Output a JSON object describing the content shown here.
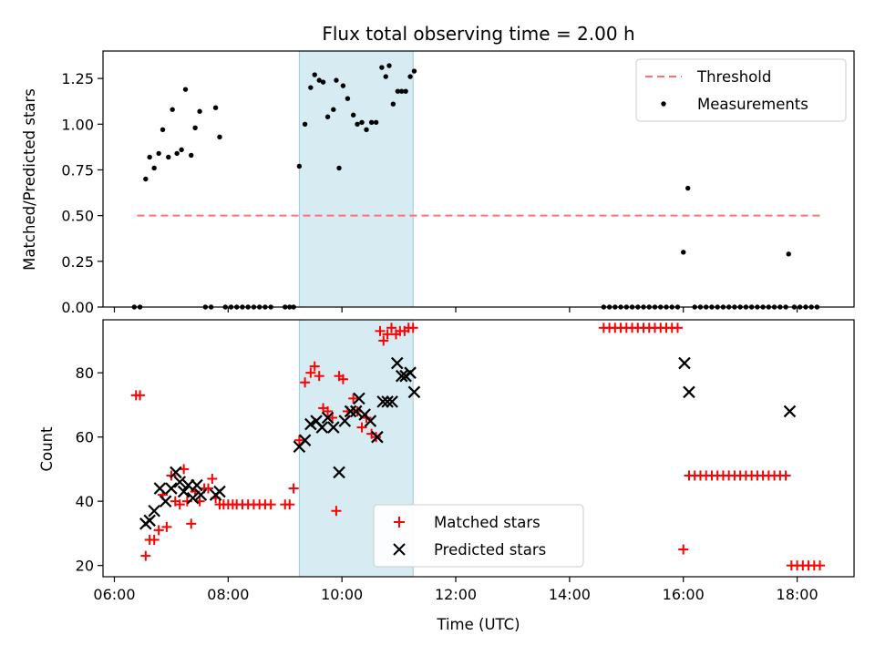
{
  "chart_data": [
    {
      "type": "scatter",
      "title": "Flux total observing time = 2.00 h",
      "xlabel": "",
      "ylabel": "Matched/Predicted stars",
      "xlim": [
        5.8,
        19.0
      ],
      "ylim": [
        0.0,
        1.4
      ],
      "yticks": [
        0.0,
        0.25,
        0.5,
        0.75,
        1.0,
        1.25
      ],
      "ytick_labels": [
        "0.00",
        "0.25",
        "0.50",
        "0.75",
        "1.00",
        "1.25"
      ],
      "highlight_span": [
        9.25,
        11.25
      ],
      "legend_position": "upper right",
      "grid": false,
      "series": [
        {
          "name": "Threshold",
          "type": "line",
          "style": "dashed",
          "color": "#ff7070",
          "x": [
            6.4,
            18.4
          ],
          "y": [
            0.5,
            0.5
          ]
        },
        {
          "name": "Measurements",
          "type": "scatter",
          "marker": "dot",
          "color": "#000000",
          "x": [
            6.35,
            6.45,
            6.55,
            6.62,
            6.7,
            6.78,
            6.85,
            6.95,
            7.02,
            7.1,
            7.18,
            7.25,
            7.35,
            7.42,
            7.5,
            7.6,
            7.7,
            7.78,
            7.85,
            7.95,
            8.05,
            8.15,
            8.25,
            8.35,
            8.45,
            8.55,
            8.65,
            8.75,
            9.0,
            9.08,
            9.15,
            9.25,
            9.35,
            9.45,
            9.52,
            9.6,
            9.67,
            9.75,
            9.85,
            9.9,
            9.95,
            10.02,
            10.1,
            10.2,
            10.27,
            10.35,
            10.43,
            10.52,
            10.6,
            10.7,
            10.77,
            10.83,
            10.9,
            10.98,
            11.05,
            11.12,
            11.2,
            11.27,
            14.6,
            14.7,
            14.8,
            14.9,
            15.0,
            15.1,
            15.2,
            15.3,
            15.4,
            15.5,
            15.6,
            15.7,
            15.8,
            15.9,
            16.0,
            16.08,
            16.2,
            16.3,
            16.4,
            16.5,
            16.6,
            16.7,
            16.8,
            16.9,
            17.0,
            17.1,
            17.2,
            17.3,
            17.4,
            17.5,
            17.6,
            17.7,
            17.8,
            17.85,
            17.95,
            18.05,
            18.15,
            18.25,
            18.35
          ],
          "y": [
            0.0,
            0.0,
            0.7,
            0.82,
            0.76,
            0.84,
            0.97,
            0.82,
            1.08,
            0.84,
            0.86,
            1.19,
            0.83,
            0.98,
            1.07,
            0.0,
            0.0,
            1.09,
            0.93,
            0.0,
            0.0,
            0.0,
            0.0,
            0.0,
            0.0,
            0.0,
            0.0,
            0.0,
            0.0,
            0.0,
            0.0,
            0.77,
            1.0,
            1.2,
            1.27,
            1.24,
            1.23,
            1.04,
            1.08,
            1.24,
            0.76,
            1.21,
            1.14,
            1.05,
            1.0,
            1.01,
            0.97,
            1.01,
            1.01,
            1.31,
            1.26,
            1.32,
            1.11,
            1.18,
            1.18,
            1.18,
            1.26,
            1.29,
            0.0,
            0.0,
            0.0,
            0.0,
            0.0,
            0.0,
            0.0,
            0.0,
            0.0,
            0.0,
            0.0,
            0.0,
            0.0,
            0.0,
            0.3,
            0.65,
            0.0,
            0.0,
            0.0,
            0.0,
            0.0,
            0.0,
            0.0,
            0.0,
            0.0,
            0.0,
            0.0,
            0.0,
            0.0,
            0.0,
            0.0,
            0.0,
            0.0,
            0.29,
            0.0,
            0.0,
            0.0,
            0.0,
            0.0
          ]
        }
      ]
    },
    {
      "type": "scatter",
      "title": "",
      "xlabel": "Time (UTC)",
      "ylabel": "Count",
      "xlim": [
        5.8,
        19.0
      ],
      "ylim": [
        16.5,
        96.5
      ],
      "yticks": [
        20,
        40,
        60,
        80
      ],
      "ytick_labels": [
        "20",
        "40",
        "60",
        "80"
      ],
      "xticks": [
        6,
        8,
        10,
        12,
        14,
        16,
        18
      ],
      "xtick_labels": [
        "06:00",
        "08:00",
        "10:00",
        "12:00",
        "14:00",
        "16:00",
        "18:00"
      ],
      "highlight_span": [
        9.25,
        11.25
      ],
      "legend_position": "lower center",
      "grid": false,
      "series": [
        {
          "name": "Matched stars",
          "marker": "plus",
          "color": "#ff0000",
          "x": [
            6.38,
            6.45,
            6.55,
            6.62,
            6.7,
            6.78,
            6.85,
            6.92,
            7.0,
            7.07,
            7.15,
            7.22,
            7.28,
            7.35,
            7.42,
            7.5,
            7.58,
            7.65,
            7.72,
            7.78,
            7.85,
            7.92,
            8.0,
            8.08,
            8.15,
            8.25,
            8.35,
            8.45,
            8.55,
            8.65,
            8.75,
            9.0,
            9.08,
            9.15,
            9.25,
            9.35,
            9.45,
            9.52,
            9.6,
            9.67,
            9.75,
            9.83,
            9.9,
            9.95,
            10.02,
            10.1,
            10.2,
            10.27,
            10.35,
            10.43,
            10.52,
            10.6,
            10.67,
            10.73,
            10.8,
            10.87,
            10.95,
            11.02,
            11.1,
            11.17,
            11.25,
            14.6,
            14.7,
            14.8,
            14.9,
            15.0,
            15.1,
            15.2,
            15.3,
            15.4,
            15.5,
            15.6,
            15.7,
            15.8,
            15.9,
            16.0,
            16.1,
            16.2,
            16.3,
            16.4,
            16.5,
            16.6,
            16.7,
            16.8,
            16.9,
            17.0,
            17.1,
            17.2,
            17.3,
            17.4,
            17.5,
            17.6,
            17.7,
            17.8,
            17.9,
            18.0,
            18.1,
            18.2,
            18.3,
            18.4
          ],
          "y": [
            73,
            73,
            23,
            28,
            28,
            31,
            42,
            32,
            48,
            40,
            39,
            50,
            40,
            33,
            43,
            40,
            44,
            44,
            47,
            41,
            39,
            39,
            39,
            39,
            39,
            39,
            39,
            39,
            39,
            39,
            39,
            39,
            39,
            44,
            59,
            77,
            80,
            82,
            79,
            69,
            68,
            66,
            37,
            79,
            78,
            68,
            72,
            68,
            63,
            66,
            61,
            60,
            93,
            90,
            92,
            94,
            92,
            93,
            93,
            94,
            94,
            94,
            94,
            94,
            94,
            94,
            94,
            94,
            94,
            94,
            94,
            94,
            94,
            94,
            94,
            25,
            48,
            48,
            48,
            48,
            48,
            48,
            48,
            48,
            48,
            48,
            48,
            48,
            48,
            48,
            48,
            48,
            48,
            48,
            20,
            20,
            20,
            20,
            20,
            20
          ],
          "y_fix_note": ""
        },
        {
          "name": "Predicted stars",
          "marker": "x",
          "color": "#000000",
          "x": [
            6.55,
            6.62,
            6.7,
            6.8,
            6.9,
            7.0,
            7.08,
            7.15,
            7.22,
            7.3,
            7.38,
            7.45,
            7.52,
            7.78,
            7.85,
            9.25,
            9.35,
            9.45,
            9.55,
            9.65,
            9.75,
            9.85,
            9.95,
            10.05,
            10.15,
            10.25,
            10.3,
            10.4,
            10.5,
            10.62,
            10.72,
            10.8,
            10.88,
            10.97,
            11.05,
            11.12,
            11.2,
            11.27,
            16.02,
            16.1,
            17.87
          ],
          "y": [
            33,
            34,
            37,
            44,
            40,
            44,
            49,
            46,
            43,
            45,
            41,
            45,
            42,
            42,
            43,
            57,
            59,
            64,
            65,
            63,
            66,
            63,
            49,
            65,
            68,
            68,
            72,
            67,
            65,
            60,
            71,
            71,
            71,
            83,
            79,
            79,
            80,
            74,
            83,
            74,
            68
          ]
        }
      ]
    }
  ]
}
